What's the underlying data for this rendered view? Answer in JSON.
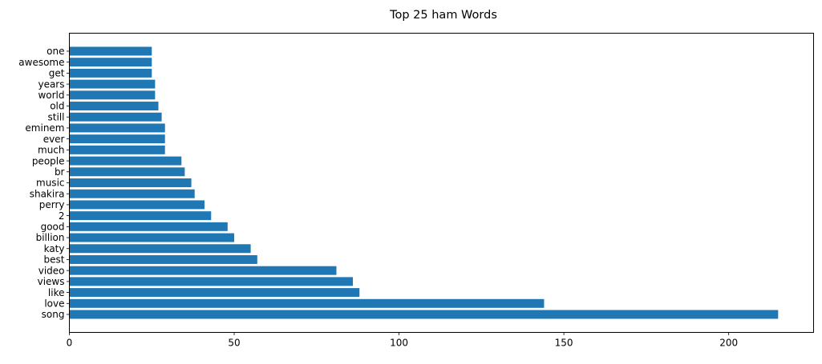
{
  "chart_data": {
    "type": "bar",
    "orientation": "horizontal",
    "title": "Top 25 ham Words",
    "xlabel": "",
    "ylabel": "",
    "categories": [
      "song",
      "love",
      "like",
      "views",
      "video",
      "best",
      "katy",
      "billion",
      "good",
      "2",
      "perry",
      "shakira",
      "music",
      "br",
      "people",
      "much",
      "ever",
      "eminem",
      "still",
      "old",
      "world",
      "years",
      "get",
      "awesome",
      "one"
    ],
    "values": [
      215,
      144,
      88,
      86,
      81,
      57,
      55,
      50,
      48,
      43,
      41,
      38,
      37,
      35,
      34,
      29,
      29,
      29,
      28,
      27,
      26,
      26,
      25,
      25,
      25
    ],
    "xlim": [
      0,
      225.75
    ],
    "xticks": [
      0,
      50,
      100,
      150,
      200
    ],
    "grid": false,
    "legend": "none",
    "bar_color": "#1f77b4"
  }
}
